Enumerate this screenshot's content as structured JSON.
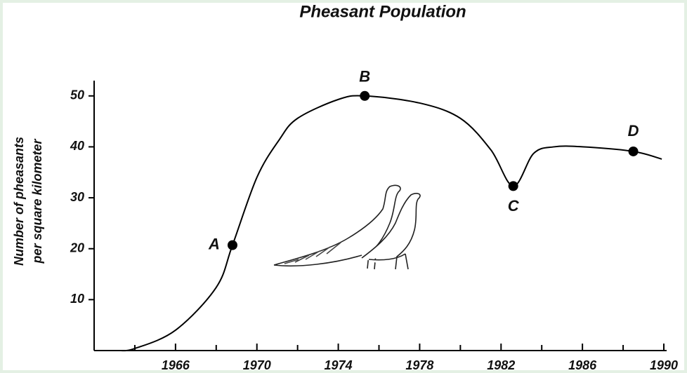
{
  "chart_data": {
    "type": "line",
    "title": "Pheasant Population",
    "y_label": [
      "Number of pheasants",
      "per square kilometer"
    ],
    "x": [
      1963.2,
      1964,
      1966,
      1968,
      1968.8,
      1970,
      1971.1,
      1972,
      1974,
      1975.3,
      1978,
      1980,
      1981.5,
      1982.6,
      1983.6,
      1984.6,
      1986,
      1988.5,
      1989.9
    ],
    "series": [
      {
        "color": "#000000",
        "values": [
          0,
          0.4,
          4,
          12.4,
          20.7,
          34,
          41.4,
          45.6,
          49.3,
          50,
          48.6,
          45.6,
          39.4,
          32.3,
          38.7,
          40,
          40,
          39.1,
          37.6
        ]
      }
    ],
    "points": [
      {
        "label": "A",
        "x": 1968.8,
        "y": 20.7
      },
      {
        "label": "B",
        "x": 1975.3,
        "y": 50
      },
      {
        "label": "C",
        "x": 1982.6,
        "y": 32.3
      },
      {
        "label": "D",
        "x": 1988.5,
        "y": 39.1
      }
    ],
    "xlim": [
      1962,
      1990
    ],
    "ylim": [
      0,
      53
    ],
    "xticks": [
      1966,
      1970,
      1974,
      1978,
      1982,
      1986,
      1990
    ],
    "xminorticks": [
      1964,
      1968,
      1972,
      1976,
      1980,
      1984,
      1988
    ],
    "yticks": [
      10,
      20,
      30,
      40,
      50
    ]
  }
}
